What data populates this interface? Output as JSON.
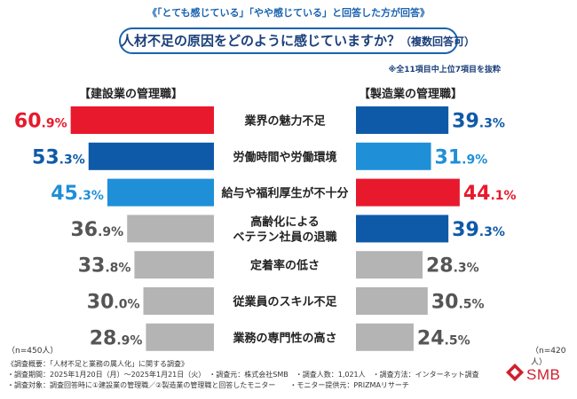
{
  "header": {
    "top_note": "《「とても感じている」「やや感じている」と回答した方が回答》",
    "question": "人材不足の原因をどのように感じていますか？",
    "question_sub": "（複数回答可）",
    "scope_note": "※全11項目中上位7項目を抜粋"
  },
  "groups": {
    "left_title": "【建設業の管理職】",
    "right_title": "【製造業の管理職】",
    "left_n": "（n=450人）",
    "right_n": "（n=420人）"
  },
  "colors": {
    "highlight_red": "#e8192c",
    "dark_blue": "#0f5aa8",
    "light_blue": "#1f8fd8",
    "gray": "#b4b4b4"
  },
  "chart_data": {
    "type": "bar",
    "orientation": "horizontal-butterfly",
    "unit": "%",
    "categories": [
      "業界の魅力不足",
      "労働時間や労働環境",
      "給与や福利厚生が不十分",
      "高齢化による\nベテラン社員の退職",
      "定着率の低さ",
      "従業員のスキル不足",
      "業務の専門性の高さ"
    ],
    "series": [
      {
        "name": "建設業の管理職",
        "values": [
          60.9,
          53.3,
          45.3,
          36.9,
          33.8,
          30.0,
          28.9
        ],
        "colors": [
          "#e8192c",
          "#0f5aa8",
          "#1f8fd8",
          "#b4b4b4",
          "#b4b4b4",
          "#b4b4b4",
          "#b4b4b4"
        ]
      },
      {
        "name": "製造業の管理職",
        "values": [
          39.3,
          31.9,
          44.1,
          39.3,
          28.3,
          30.5,
          24.5
        ],
        "colors": [
          "#0f5aa8",
          "#1f8fd8",
          "#e8192c",
          "#0f5aa8",
          "#b4b4b4",
          "#b4b4b4",
          "#b4b4b4"
        ]
      }
    ],
    "top3_rank_colors": [
      "#e8192c",
      "#0f5aa8",
      "#1f8fd8"
    ]
  },
  "footer": {
    "line1": "《調査概要：「人材不足と業務の属人化」に関する調査》",
    "line2": "・調査期間：2025年1月20日（月）～2025年1月21日（火）　・調査元：株式会社SMB　・調査人数：1,021人　・調査方法：インターネット調査",
    "line3": "・調査対象：調査回答時に①建設業の管理職／②製造業の管理職と回答したモニター　　・モニター提供元：PRIZMAリサーチ"
  },
  "logo": {
    "text": "SMB",
    "color": "#d01f2e"
  }
}
